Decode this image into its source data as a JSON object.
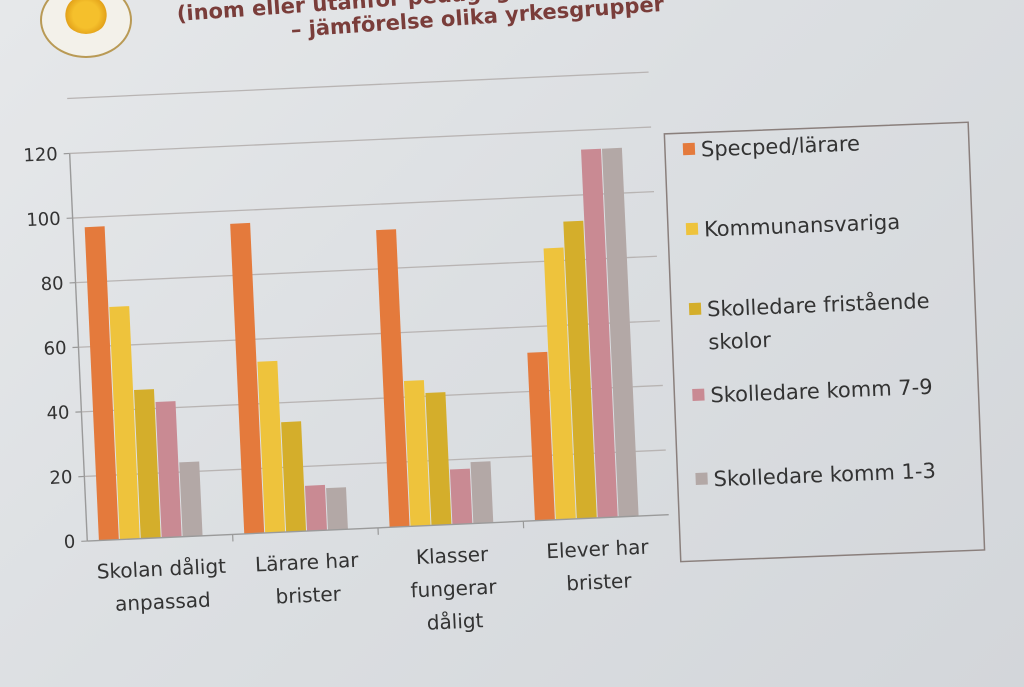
{
  "slide": {
    "title_line1": "(inom eller utanför pedagog",
    "title_line2": "– jämförelse olika yrkesgrupper"
  },
  "chart_data": {
    "type": "bar",
    "categories": [
      "Skolan dåligt anpassad",
      "Lärare har brister",
      "Klasser fungerar dåligt",
      "Elever har brister"
    ],
    "category_lines": [
      [
        "Skolan dåligt",
        "anpassad"
      ],
      [
        "Lärare har",
        "brister"
      ],
      [
        "Klasser",
        "fungerar",
        "dåligt"
      ],
      [
        "Elever har",
        "brister"
      ]
    ],
    "series": [
      {
        "name": "Specped/lärare",
        "color": "#e47a3c",
        "values": [
          97,
          96,
          92,
          52
        ]
      },
      {
        "name": "Kommunansvariga",
        "color": "#eec33c",
        "values": [
          72,
          53,
          45,
          84
        ]
      },
      {
        "name": "Skolledare fristående skolor",
        "color": "#d4ae2b",
        "values": [
          46,
          34,
          41,
          92
        ]
      },
      {
        "name": "Skolledare komm 7-9",
        "color": "#c98a93",
        "values": [
          42,
          14,
          17,
          114
        ]
      },
      {
        "name": "Skolledare komm 1-3",
        "color": "#b3a8a6",
        "values": [
          23,
          13,
          19,
          114
        ]
      }
    ],
    "legend_lines": [
      [
        "Specped/lärare"
      ],
      [
        "Kommunansvariga"
      ],
      [
        "Skolledare fristående",
        "skolor"
      ],
      [
        "Skolledare komm 7-9"
      ],
      [
        "Skolledare komm 1-3"
      ]
    ],
    "yticks": [
      0,
      20,
      40,
      60,
      80,
      100,
      120
    ],
    "ylim": [
      0,
      120
    ],
    "grid": true,
    "legend_position": "right"
  }
}
